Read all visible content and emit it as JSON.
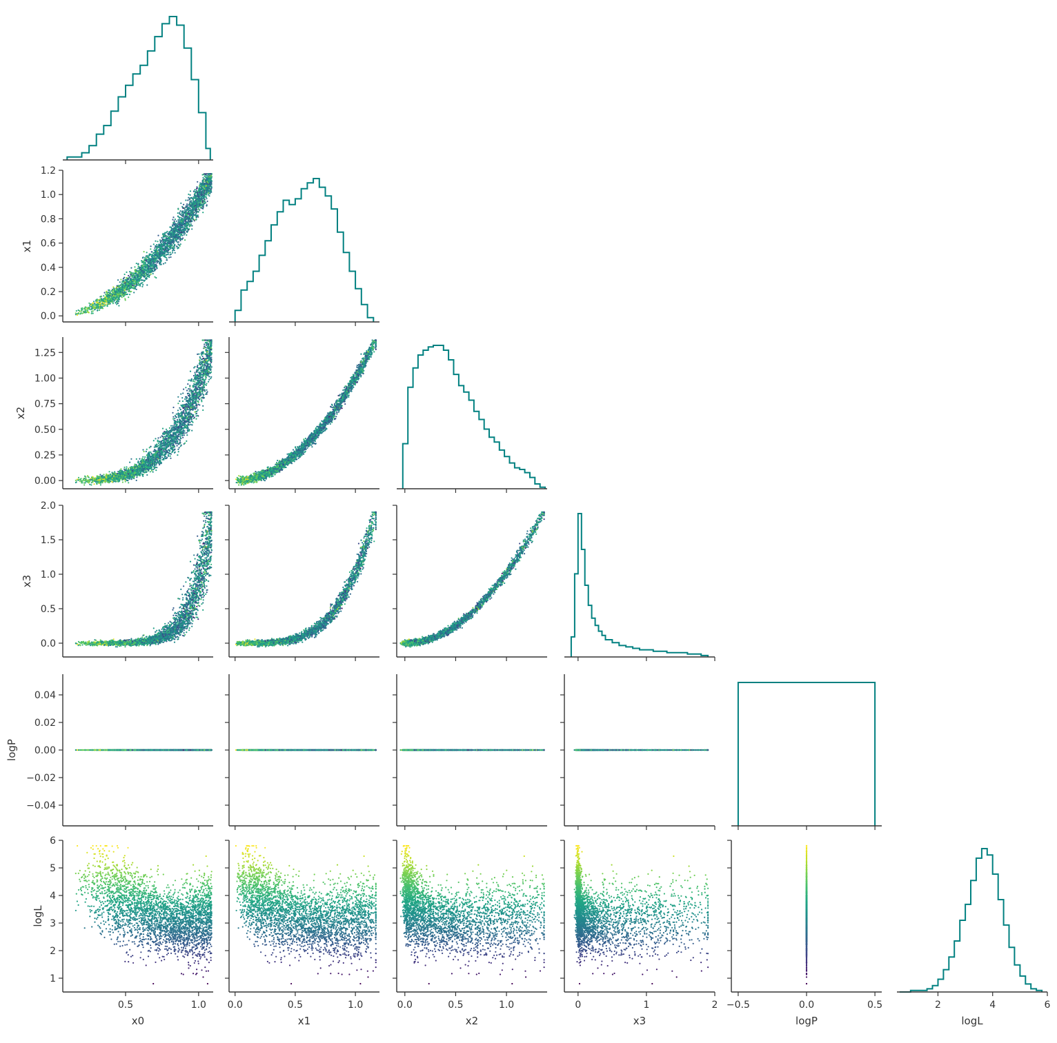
{
  "chart_data": {
    "type": "corner-plot",
    "variables": [
      "x0",
      "x1",
      "x2",
      "x3",
      "logP",
      "logL"
    ],
    "diagonal": "step-histogram",
    "off_diagonal": "scatter",
    "scatter_color_by": "logL",
    "colormap": "viridis",
    "histogram_color": "#008080",
    "axes": {
      "x0": {
        "range": [
          0.07,
          1.1
        ],
        "ticks": [
          0.5,
          1.0
        ],
        "tick_labels": [
          "0.5",
          "1.0"
        ]
      },
      "x1": {
        "range": [
          -0.05,
          1.2
        ],
        "ticks": [
          0.0,
          0.2,
          0.4,
          0.6,
          0.8,
          1.0,
          1.2
        ],
        "tick_labels": [
          "0.0",
          "0.2",
          "0.4",
          "0.6",
          "0.8",
          "1.0",
          "1.2"
        ]
      },
      "x2": {
        "range": [
          -0.08,
          1.4
        ],
        "ticks": [
          0.0,
          0.25,
          0.5,
          0.75,
          1.0,
          1.25
        ],
        "tick_labels": [
          "0.00",
          "0.25",
          "0.50",
          "0.75",
          "1.00",
          "1.25"
        ]
      },
      "x3": {
        "range": [
          -0.2,
          2.0
        ],
        "ticks": [
          0.0,
          0.5,
          1.0,
          1.5,
          2.0
        ],
        "tick_labels": [
          "0.0",
          "0.5",
          "1.0",
          "1.5",
          "2.0"
        ]
      },
      "logP": {
        "range": [
          -0.055,
          0.055
        ],
        "ticks": [
          -0.04,
          -0.02,
          0.0,
          0.02,
          0.04
        ],
        "tick_labels": [
          "−0.04",
          "−0.02",
          "0.00",
          "0.02",
          "0.04"
        ]
      },
      "logL": {
        "range": [
          0.5,
          6.0
        ],
        "ticks": [
          1,
          2,
          3,
          4,
          5,
          6
        ],
        "tick_labels": [
          "1",
          "2",
          "3",
          "4",
          "5",
          "6"
        ]
      }
    },
    "bottom_x_axes": {
      "x0": {
        "ticks": [
          0.5,
          1.0
        ],
        "tick_labels": [
          "0.5",
          "1.0"
        ]
      },
      "x1": {
        "ticks": [
          0.0,
          0.5,
          1.0
        ],
        "tick_labels": [
          "0.0",
          "0.5",
          "1.0"
        ]
      },
      "x2": {
        "ticks": [
          0.0,
          0.5,
          1.0
        ],
        "tick_labels": [
          "0.0",
          "0.5",
          "1.0"
        ]
      },
      "x3": {
        "ticks": [
          0,
          1,
          2
        ],
        "tick_labels": [
          "0",
          "1",
          "2"
        ]
      },
      "logP": {
        "range": [
          -0.55,
          0.55
        ],
        "ticks": [
          -0.5,
          0.0,
          0.5
        ],
        "tick_labels": [
          "−0.5",
          "0.0",
          "0.5"
        ]
      },
      "logL": {
        "ticks": [
          2,
          4,
          6
        ],
        "tick_labels": [
          "2",
          "4",
          "6"
        ]
      }
    },
    "histograms": {
      "x0": {
        "bins": [
          0.1,
          0.2,
          0.25,
          0.3,
          0.35,
          0.4,
          0.45,
          0.5,
          0.55,
          0.6,
          0.65,
          0.7,
          0.75,
          0.8,
          0.85,
          0.9,
          0.95,
          1.0,
          1.05,
          1.08
        ],
        "counts": [
          2,
          5,
          10,
          18,
          24,
          34,
          44,
          52,
          60,
          66,
          76,
          86,
          95,
          100,
          94,
          78,
          56,
          33,
          8
        ]
      },
      "x1": {
        "bins": [
          0.0,
          0.05,
          0.1,
          0.15,
          0.2,
          0.25,
          0.3,
          0.35,
          0.4,
          0.45,
          0.5,
          0.55,
          0.6,
          0.65,
          0.7,
          0.75,
          0.8,
          0.85,
          0.9,
          0.95,
          1.0,
          1.05,
          1.1,
          1.15
        ],
        "counts": [
          8,
          22,
          28,
          35,
          46,
          56,
          67,
          76,
          84,
          81,
          85,
          92,
          96,
          99,
          93,
          87,
          78,
          62,
          48,
          35,
          23,
          12,
          3
        ]
      },
      "x2": {
        "bins": [
          -0.02,
          0.03,
          0.08,
          0.13,
          0.18,
          0.23,
          0.28,
          0.33,
          0.38,
          0.43,
          0.48,
          0.53,
          0.58,
          0.63,
          0.68,
          0.73,
          0.78,
          0.83,
          0.88,
          0.93,
          0.98,
          1.03,
          1.08,
          1.13,
          1.18,
          1.23,
          1.28,
          1.33,
          1.38
        ],
        "counts": [
          28,
          63,
          75,
          83,
          86,
          88,
          89,
          89,
          86,
          80,
          71,
          64,
          60,
          55,
          48,
          43,
          37,
          32,
          29,
          24,
          20,
          16,
          13,
          12,
          10,
          7,
          3,
          1
        ]
      },
      "x3": {
        "bins": [
          -0.1,
          -0.05,
          0.0,
          0.05,
          0.1,
          0.15,
          0.2,
          0.25,
          0.3,
          0.35,
          0.4,
          0.5,
          0.6,
          0.7,
          0.8,
          0.9,
          1.0,
          1.1,
          1.2,
          1.3,
          1.4,
          1.5,
          1.6,
          1.7,
          1.8,
          1.9
        ],
        "counts": [
          14,
          58,
          100,
          75,
          50,
          36,
          27,
          22,
          18,
          15,
          12,
          10,
          8,
          7,
          6,
          5,
          5,
          4,
          4,
          3,
          3,
          3,
          2,
          2,
          1
        ]
      },
      "logP": {
        "bins": [
          -0.5,
          0.5
        ],
        "counts": [
          100
        ]
      },
      "logL": {
        "bins": [
          0.6,
          1.0,
          1.2,
          1.4,
          1.6,
          1.8,
          2.0,
          2.2,
          2.4,
          2.6,
          2.8,
          3.0,
          3.2,
          3.4,
          3.6,
          3.8,
          4.0,
          4.2,
          4.4,
          4.6,
          4.8,
          5.0,
          5.2,
          5.4,
          5.6,
          5.8
        ],
        "counts": [
          0,
          1,
          1,
          1,
          2,
          4,
          8,
          14,
          22,
          32,
          45,
          55,
          70,
          84,
          90,
          86,
          74,
          58,
          42,
          28,
          17,
          10,
          5,
          2,
          1
        ]
      }
    }
  }
}
